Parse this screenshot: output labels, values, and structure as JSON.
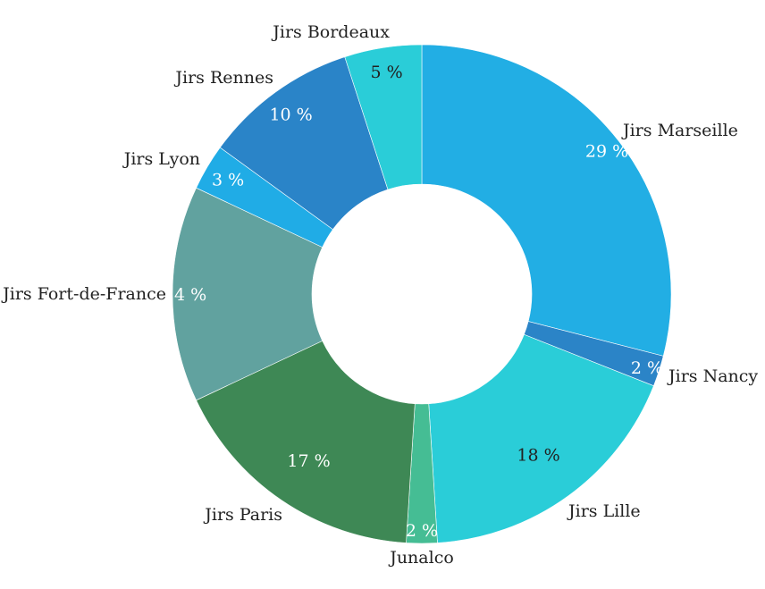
{
  "chart_data": {
    "type": "pie",
    "donut": true,
    "title": "",
    "legend": "none",
    "unit": "%",
    "series": [
      {
        "slices": [
          {
            "name": "Jirs Marseille",
            "value": 29,
            "label": "29 %",
            "color": "#22aee4",
            "label_dark": false
          },
          {
            "name": "Jirs Nancy",
            "value": 2,
            "label": "2 %",
            "color": "#2b84c7",
            "label_dark": false
          },
          {
            "name": "Jirs Lille",
            "value": 18,
            "label": "18 %",
            "color": "#2acdd8",
            "label_dark": true
          },
          {
            "name": "Junalco",
            "value": 2,
            "label": "2 %",
            "color": "#45bd94",
            "label_dark": false
          },
          {
            "name": "Jirs Paris",
            "value": 17,
            "label": "17 %",
            "color": "#3e8855",
            "label_dark": false
          },
          {
            "name": "Jirs Fort-de-France",
            "value": 14,
            "label": "14 %",
            "color": "#61a29f",
            "label_dark": false
          },
          {
            "name": "Jirs Lyon",
            "value": 3,
            "label": "3 %",
            "color": "#20ace6",
            "label_dark": false
          },
          {
            "name": "Jirs Rennes",
            "value": 10,
            "label": "10 %",
            "color": "#2a84c8",
            "label_dark": false
          },
          {
            "name": "Jirs Bordeaux",
            "value": 5,
            "label": "5 %",
            "color": "#2acdd8",
            "label_dark": true
          }
        ]
      }
    ]
  }
}
